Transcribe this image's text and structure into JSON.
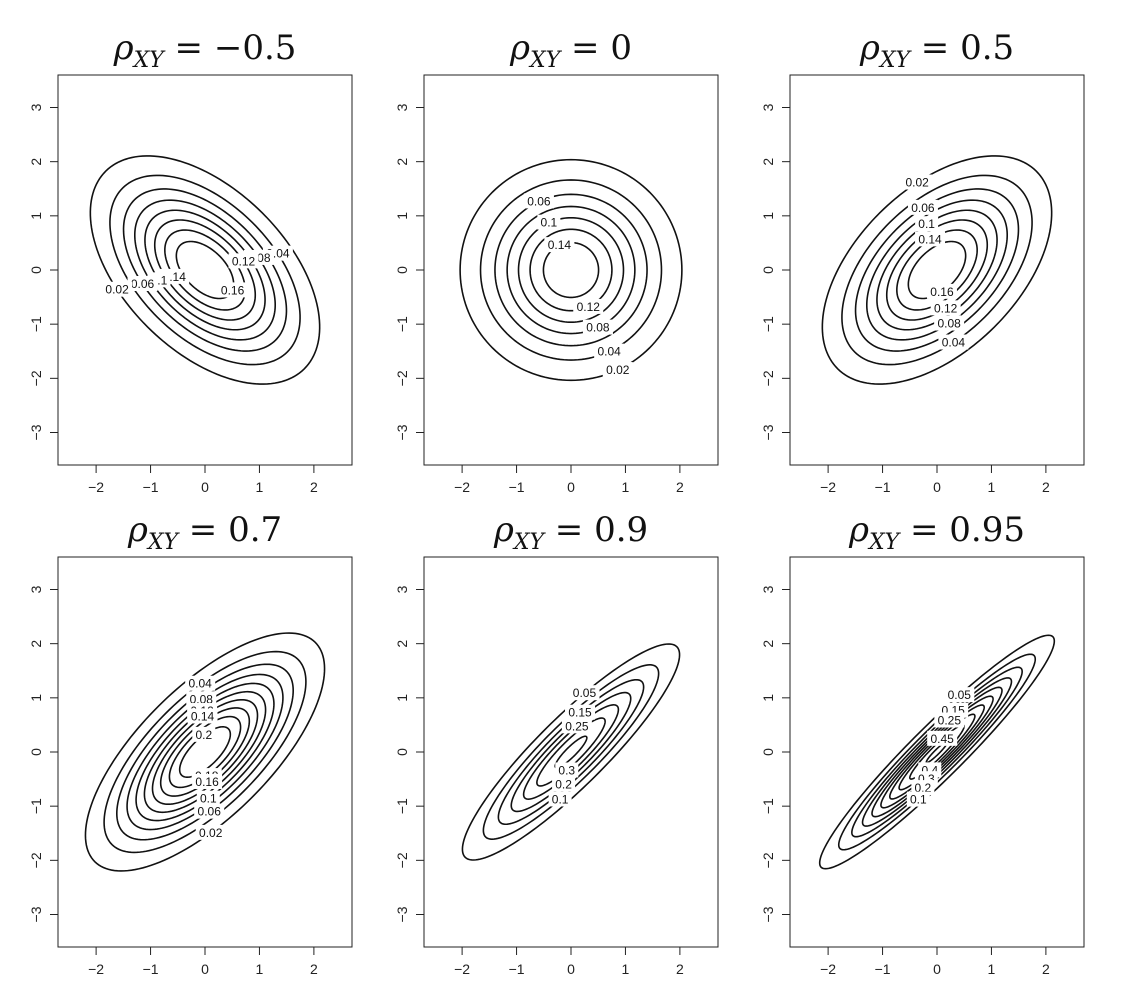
{
  "chart_data": [
    {
      "type": "contour",
      "title": "ρXY = −0.5",
      "title_parts": {
        "symbol": "ρ",
        "subscript": "XY",
        "value": "= −0.5"
      },
      "rho": -0.5,
      "xlim": [
        -2.7,
        2.7
      ],
      "ylim": [
        -3.6,
        3.6
      ],
      "xticks": [
        -2,
        -1,
        0,
        1,
        2
      ],
      "yticks": [
        -3,
        -2,
        -1,
        0,
        1,
        2,
        3
      ],
      "levels": [
        0.02,
        0.04,
        0.06,
        0.08,
        0.1,
        0.12,
        0.14,
        0.16
      ],
      "labels": [
        {
          "text": "0.04",
          "level": 0.04,
          "side": "upper"
        },
        {
          "text": "0.08",
          "level": 0.08,
          "side": "upper"
        },
        {
          "text": "0.12",
          "level": 0.12,
          "side": "upper"
        },
        {
          "text": "0.16",
          "level": 0.16,
          "side": "right"
        },
        {
          "text": "0.14",
          "level": 0.14,
          "side": "lower"
        },
        {
          "text": "0.1",
          "level": 0.1,
          "side": "lower"
        },
        {
          "text": "0.06",
          "level": 0.06,
          "side": "lower"
        },
        {
          "text": "0.02",
          "level": 0.02,
          "side": "lower"
        }
      ]
    },
    {
      "type": "contour",
      "title": "ρXY = 0",
      "title_parts": {
        "symbol": "ρ",
        "subscript": "XY",
        "value": "= 0"
      },
      "rho": 0,
      "xlim": [
        -2.7,
        2.7
      ],
      "ylim": [
        -3.6,
        3.6
      ],
      "xticks": [
        -2,
        -1,
        0,
        1,
        2
      ],
      "yticks": [
        -3,
        -2,
        -1,
        0,
        1,
        2,
        3
      ],
      "levels": [
        0.02,
        0.04,
        0.06,
        0.08,
        0.1,
        0.12,
        0.14
      ],
      "labels": [
        {
          "text": "0.06",
          "level": 0.06,
          "side": "upper"
        },
        {
          "text": "0.1",
          "level": 0.1,
          "side": "upper"
        },
        {
          "text": "0.14",
          "level": 0.14,
          "side": "upper"
        },
        {
          "text": "0.12",
          "level": 0.12,
          "side": "lower"
        },
        {
          "text": "0.08",
          "level": 0.08,
          "side": "lower"
        },
        {
          "text": "0.04",
          "level": 0.04,
          "side": "lower"
        },
        {
          "text": "0.02",
          "level": 0.02,
          "side": "lower"
        }
      ]
    },
    {
      "type": "contour",
      "title": "ρXY = 0.5",
      "title_parts": {
        "symbol": "ρ",
        "subscript": "XY",
        "value": "= 0.5"
      },
      "rho": 0.5,
      "xlim": [
        -2.7,
        2.7
      ],
      "ylim": [
        -3.6,
        3.6
      ],
      "xticks": [
        -2,
        -1,
        0,
        1,
        2
      ],
      "yticks": [
        -3,
        -2,
        -1,
        0,
        1,
        2,
        3
      ],
      "levels": [
        0.02,
        0.04,
        0.06,
        0.08,
        0.1,
        0.12,
        0.14,
        0.16
      ],
      "labels": [
        {
          "text": "0.02",
          "level": 0.02,
          "side": "upper"
        },
        {
          "text": "0.06",
          "level": 0.06,
          "side": "upper"
        },
        {
          "text": "0.1",
          "level": 0.1,
          "side": "upper"
        },
        {
          "text": "0.14",
          "level": 0.14,
          "side": "upper"
        },
        {
          "text": "0.16",
          "level": 0.16,
          "side": "lower"
        },
        {
          "text": "0.12",
          "level": 0.12,
          "side": "lower"
        },
        {
          "text": "0.08",
          "level": 0.08,
          "side": "lower"
        },
        {
          "text": "0.04",
          "level": 0.04,
          "side": "lower"
        }
      ]
    },
    {
      "type": "contour",
      "title": "ρXY = 0.7",
      "title_parts": {
        "symbol": "ρ",
        "subscript": "XY",
        "value": "= 0.7"
      },
      "rho": 0.7,
      "xlim": [
        -2.7,
        2.7
      ],
      "ylim": [
        -3.6,
        3.6
      ],
      "xticks": [
        -2,
        -1,
        0,
        1,
        2
      ],
      "yticks": [
        -3,
        -2,
        -1,
        0,
        1,
        2,
        3
      ],
      "levels": [
        0.02,
        0.04,
        0.06,
        0.08,
        0.1,
        0.12,
        0.14,
        0.16,
        0.18,
        0.2
      ],
      "labels": [
        {
          "text": "0.04",
          "level": 0.04,
          "side": "upper"
        },
        {
          "text": "0.08",
          "level": 0.08,
          "side": "upper"
        },
        {
          "text": "0.12",
          "level": 0.12,
          "side": "upper"
        },
        {
          "text": "0.14",
          "level": 0.14,
          "side": "upper"
        },
        {
          "text": "0.2",
          "level": 0.2,
          "side": "upper"
        },
        {
          "text": "0.18",
          "level": 0.18,
          "side": "lower"
        },
        {
          "text": "0.16",
          "level": 0.16,
          "side": "lower"
        },
        {
          "text": "0.1",
          "level": 0.1,
          "side": "lower"
        },
        {
          "text": "0.06",
          "level": 0.06,
          "side": "lower"
        },
        {
          "text": "0.02",
          "level": 0.02,
          "side": "lower"
        }
      ]
    },
    {
      "type": "contour",
      "title": "ρXY = 0.9",
      "title_parts": {
        "symbol": "ρ",
        "subscript": "XY",
        "value": "= 0.9"
      },
      "rho": 0.9,
      "xlim": [
        -2.7,
        2.7
      ],
      "ylim": [
        -3.6,
        3.6
      ],
      "xticks": [
        -2,
        -1,
        0,
        1,
        2
      ],
      "yticks": [
        -3,
        -2,
        -1,
        0,
        1,
        2,
        3
      ],
      "levels": [
        0.05,
        0.1,
        0.15,
        0.2,
        0.25,
        0.3,
        0.35
      ],
      "labels": [
        {
          "text": "0.05",
          "level": 0.05,
          "side": "upper"
        },
        {
          "text": "0.15",
          "level": 0.15,
          "side": "upper"
        },
        {
          "text": "0.25",
          "level": 0.25,
          "side": "upper"
        },
        {
          "text": "0.3",
          "level": 0.3,
          "side": "lower"
        },
        {
          "text": "0.2",
          "level": 0.2,
          "side": "lower"
        },
        {
          "text": "0.1",
          "level": 0.1,
          "side": "lower"
        }
      ]
    },
    {
      "type": "contour",
      "title": "ρXY = 0.95",
      "title_parts": {
        "symbol": "ρ",
        "subscript": "XY",
        "value": "= 0.95"
      },
      "rho": 0.95,
      "xlim": [
        -2.7,
        2.7
      ],
      "ylim": [
        -3.6,
        3.6
      ],
      "xticks": [
        -2,
        -1,
        0,
        1,
        2
      ],
      "yticks": [
        -3,
        -2,
        -1,
        0,
        1,
        2,
        3
      ],
      "levels": [
        0.05,
        0.1,
        0.15,
        0.2,
        0.25,
        0.3,
        0.35,
        0.4,
        0.45,
        0.5
      ],
      "labels": [
        {
          "text": "0.05",
          "level": 0.05,
          "side": "upper"
        },
        {
          "text": "0.15",
          "level": 0.15,
          "side": "upper"
        },
        {
          "text": "0.25",
          "level": 0.25,
          "side": "upper"
        },
        {
          "text": "0.45",
          "level": 0.45,
          "side": "upper"
        },
        {
          "text": "0.4",
          "level": 0.4,
          "side": "lower"
        },
        {
          "text": "0.3",
          "level": 0.3,
          "side": "lower"
        },
        {
          "text": "0.2",
          "level": 0.2,
          "side": "lower"
        },
        {
          "text": "0.1",
          "level": 0.1,
          "side": "lower"
        }
      ]
    }
  ]
}
